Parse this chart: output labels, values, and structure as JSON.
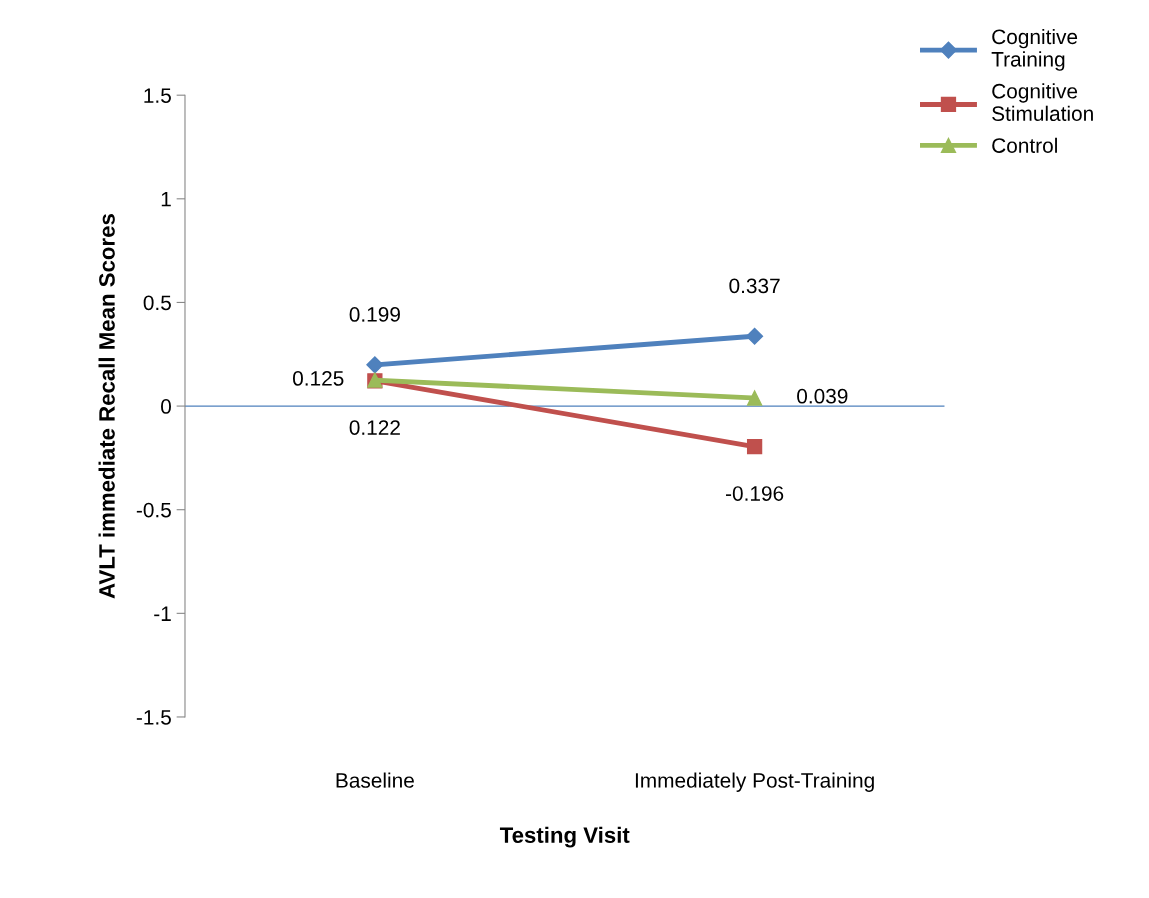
{
  "chart_data": {
    "type": "line",
    "xlabel": "Testing Visit",
    "ylabel": "AVLT immediate Recall Mean Scores",
    "categories": [
      "Baseline",
      "Immediately Post-Training"
    ],
    "series": [
      {
        "name": "Cognitive Training",
        "color": "#4f81bd",
        "values": [
          0.199,
          0.337
        ],
        "marker": "diamond"
      },
      {
        "name": "Cognitive Stimulation",
        "color": "#c0504d",
        "values": [
          0.122,
          -0.196
        ],
        "marker": "square"
      },
      {
        "name": "Control",
        "color": "#9bbb59",
        "values": [
          0.125,
          0.039
        ],
        "marker": "triangle"
      }
    ],
    "ylim": [
      -1.5,
      1.5
    ],
    "yticks": [
      -1.5,
      -1,
      -0.5,
      0,
      0.5,
      1,
      1.5
    ],
    "ref_lines": [
      {
        "axis": "y",
        "value": 0,
        "color": "#4f81bd"
      }
    ],
    "data_labels": true,
    "grid": false,
    "legend": "top right"
  }
}
